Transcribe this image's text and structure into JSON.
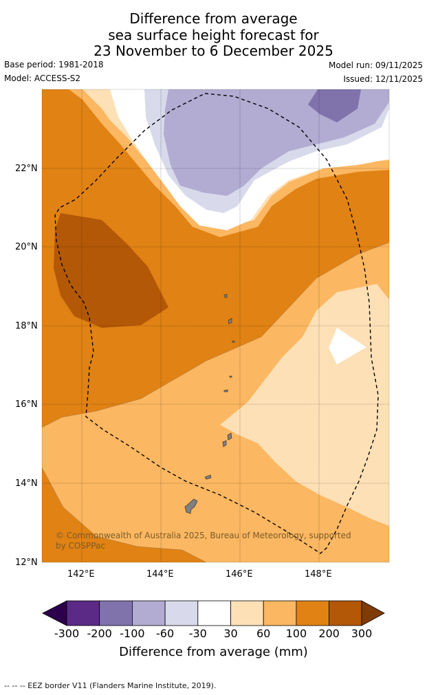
{
  "title": {
    "line1": "Difference from average",
    "line2": "sea surface height forecast for",
    "line3": "23 November to 6 December 2025"
  },
  "meta": {
    "base_period": "Base period: 1981-2018",
    "model": "Model: ACCESS-S2",
    "model_run": "Model run: 09/11/2025",
    "issued": "Issued: 12/11/2025"
  },
  "map": {
    "lat_ticks": [
      "22°N",
      "20°N",
      "18°N",
      "16°N",
      "14°N",
      "12°N"
    ],
    "lon_ticks": [
      "142°E",
      "144°E",
      "146°E",
      "148°E"
    ],
    "credit": "© Commonwealth of Australia 2025, Bureau of Meteorology, supported by COSPPac",
    "colors": {
      "c_neg200": "#5b2a86",
      "c_neg100": "#8073ac",
      "c_neg60": "#b2abd2",
      "c_neg30": "#d8daeb",
      "c_zero": "#ffffff",
      "c_30": "#fee0b6",
      "c_60": "#fbb761",
      "c_100": "#e08214",
      "c_200": "#b35806",
      "c_300": "#7f3b08",
      "c_neg300": "#2d004b"
    }
  },
  "colorbar": {
    "labels": [
      "-300",
      "-200",
      "-100",
      "-60",
      "-30",
      "30",
      "60",
      "100",
      "200",
      "300"
    ],
    "title": "Difference from average (mm)"
  },
  "footer": "--  --  -- EEZ border V11 (Flanders Marine Institute, 2019)."
}
